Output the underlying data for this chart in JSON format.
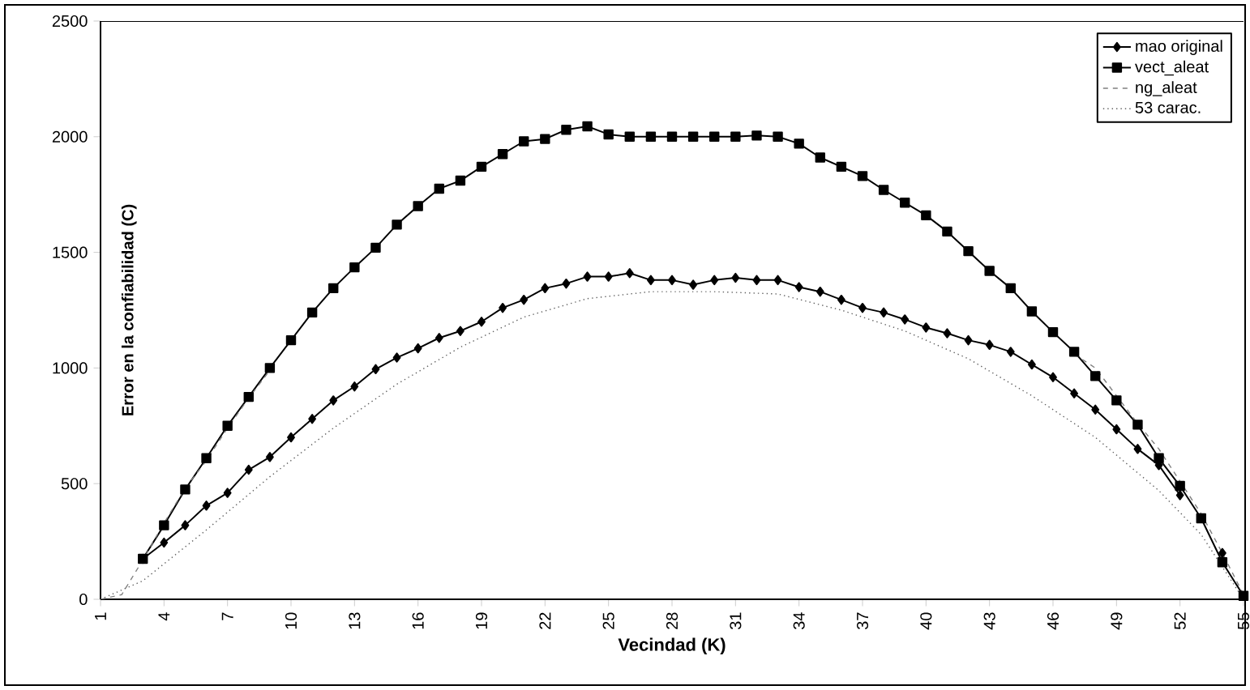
{
  "chart_data": {
    "type": "line",
    "xlabel": "Vecindad (K)",
    "ylabel": "Error en la confiabilidad (C)",
    "xlim": [
      1,
      55
    ],
    "xticks": [
      1,
      4,
      7,
      10,
      13,
      16,
      19,
      22,
      25,
      28,
      31,
      34,
      37,
      40,
      43,
      46,
      49,
      52,
      55
    ],
    "ylim": [
      0,
      2500
    ],
    "yticks": [
      0,
      500,
      1000,
      1500,
      2000,
      2500
    ],
    "legend": "top right",
    "grid": false,
    "series": [
      {
        "name": "mao original",
        "color": "#000000",
        "marker": "diamond",
        "line_style": "solid",
        "x": [
          3,
          4,
          5,
          6,
          7,
          8,
          9,
          10,
          11,
          12,
          13,
          14,
          15,
          16,
          17,
          18,
          19,
          20,
          21,
          22,
          23,
          24,
          25,
          26,
          27,
          28,
          29,
          30,
          31,
          32,
          33,
          34,
          35,
          36,
          37,
          38,
          39,
          40,
          41,
          42,
          43,
          44,
          45,
          46,
          47,
          48,
          49,
          50,
          51,
          52,
          53,
          54
        ],
        "values": [
          175,
          245,
          320,
          405,
          460,
          560,
          615,
          700,
          780,
          860,
          920,
          995,
          1045,
          1085,
          1130,
          1160,
          1200,
          1260,
          1295,
          1345,
          1365,
          1395,
          1395,
          1410,
          1380,
          1380,
          1360,
          1380,
          1390,
          1380,
          1380,
          1350,
          1330,
          1295,
          1260,
          1240,
          1210,
          1175,
          1150,
          1120,
          1100,
          1070,
          1015,
          960,
          890,
          820,
          735,
          650,
          580,
          450,
          null,
          200
        ]
      },
      {
        "name": "vect_aleat",
        "color": "#000000",
        "marker": "square",
        "line_style": "solid",
        "x": [
          3,
          4,
          5,
          6,
          7,
          8,
          9,
          10,
          11,
          12,
          13,
          14,
          15,
          16,
          17,
          18,
          19,
          20,
          21,
          22,
          23,
          24,
          25,
          26,
          27,
          28,
          29,
          30,
          31,
          32,
          33,
          34,
          35,
          36,
          37,
          38,
          39,
          40,
          41,
          42,
          43,
          44,
          45,
          46,
          47,
          48,
          49,
          50,
          51,
          52,
          53,
          54,
          55
        ],
        "values": [
          175,
          320,
          475,
          610,
          750,
          875,
          1000,
          1120,
          1240,
          1345,
          1435,
          1520,
          1620,
          1700,
          1775,
          1810,
          1870,
          1925,
          1980,
          1990,
          2030,
          2045,
          2010,
          2000,
          2000,
          2000,
          2000,
          2000,
          2000,
          2005,
          2000,
          1970,
          1910,
          1870,
          1830,
          1770,
          1715,
          1660,
          1590,
          1505,
          1420,
          1345,
          1245,
          1155,
          1070,
          965,
          860,
          755,
          610,
          490,
          350,
          160,
          15
        ]
      },
      {
        "name": "ng_aleat",
        "color": "#808080",
        "marker": "none",
        "line_style": "dashed",
        "x": [
          1,
          2,
          3,
          4,
          5,
          6,
          7,
          8,
          9,
          10,
          47,
          48,
          49,
          50,
          51,
          52,
          53,
          54,
          55
        ],
        "values": [
          0,
          20,
          170,
          330,
          480,
          600,
          740,
          870,
          990,
          null,
          1060,
          1000,
          880,
          760,
          650,
          510,
          370,
          200,
          20
        ]
      },
      {
        "name": "53 carac.",
        "color": "#606060",
        "marker": "none",
        "line_style": "dotted",
        "x": [
          1,
          3,
          6,
          9,
          12,
          15,
          18,
          21,
          24,
          27,
          30,
          33,
          36,
          39,
          42,
          45,
          48,
          51,
          53,
          55
        ],
        "values": [
          0,
          80,
          300,
          530,
          740,
          930,
          1090,
          1220,
          1300,
          1330,
          1330,
          1320,
          1250,
          1160,
          1040,
          880,
          700,
          470,
          280,
          0
        ]
      }
    ]
  }
}
